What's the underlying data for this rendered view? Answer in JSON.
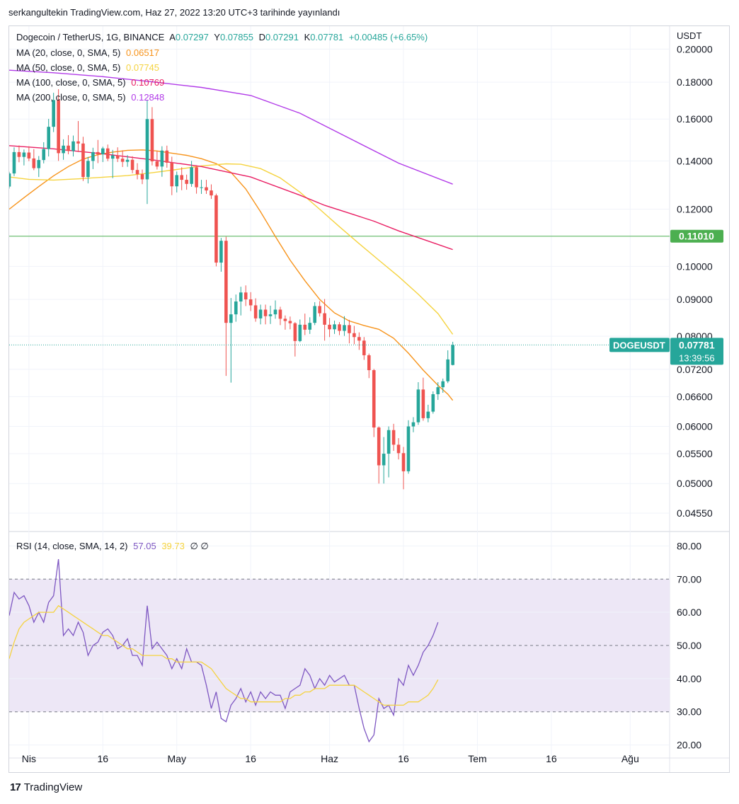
{
  "header": {
    "publish_text": "serkangultekin TradingView.com, Haz 27, 2022 13:20 UTC+3 tarihinde yayınlandı"
  },
  "legend": {
    "symbol": "Dogecoin / TetherUS, 1G, BINANCE",
    "o_label": "A",
    "o_value": "0.07297",
    "h_label": "Y",
    "h_value": "0.07855",
    "l_label": "D",
    "l_value": "0.07291",
    "c_label": "K",
    "c_value": "0.07781",
    "change": "+0.00485 (+6.65%)",
    "ma": [
      {
        "label": "MA (20, close, 0, SMA, 5)",
        "value": "0.06517",
        "color": "#f7931a"
      },
      {
        "label": "MA (50, close, 0, SMA, 5)",
        "value": "0.07745",
        "color": "#f5d33f"
      },
      {
        "label": "MA (100, close, 0, SMA, 5)",
        "value": "0.10769",
        "color": "#e91e63"
      },
      {
        "label": "MA (200, close, 0, SMA, 5)",
        "value": "0.12848",
        "color": "#b13ae8"
      }
    ],
    "rsi_label": "RSI (14, close, SMA, 14, 2)",
    "rsi_value": "57.05",
    "rsi_ma_value": "39.73",
    "rsi_extra": "∅  ∅"
  },
  "colors": {
    "up": "#26a69a",
    "down": "#ef5350",
    "rsi": "#7e57c2",
    "rsi_ma": "#f5d33f",
    "hline": "#4caf50",
    "band": "#ede7f6"
  },
  "footer": {
    "brand": "TradingView",
    "logo_mark": "17"
  },
  "chart_data": [
    {
      "type": "candlestick",
      "symbol_tag": "DOGEUSDT",
      "last_price": "0.07781",
      "countdown": "13:39:56",
      "hline_value": "0.11010",
      "y_axis_unit": "USDT",
      "scale": "log",
      "y_ticks": [
        "0.20000",
        "0.18000",
        "0.16000",
        "0.14000",
        "0.12000",
        "0.10000",
        "0.09000",
        "0.08000",
        "0.07200",
        "0.06600",
        "0.06000",
        "0.05500",
        "0.05000",
        "0.04550"
      ],
      "x_ticks": [
        "Nis",
        "16",
        "May",
        "16",
        "Haz",
        "16",
        "Tem",
        "16",
        "Ağu"
      ],
      "x_tick_days": [
        0,
        15,
        30,
        45,
        61,
        76,
        91,
        106,
        122
      ],
      "x_range_days": [
        -4,
        130
      ],
      "ylim": [
        0.0431,
        0.2085
      ],
      "ohlc_days_start": -4,
      "ohlc": [
        [
          0.129,
          0.1352,
          0.1282,
          0.1345
        ],
        [
          0.1345,
          0.1462,
          0.1334,
          0.144
        ],
        [
          0.144,
          0.1471,
          0.1394,
          0.1418
        ],
        [
          0.1418,
          0.1452,
          0.138,
          0.1438
        ],
        [
          0.1438,
          0.1467,
          0.1399,
          0.1411
        ],
        [
          0.1411,
          0.1454,
          0.1359,
          0.1368
        ],
        [
          0.1368,
          0.1422,
          0.133,
          0.1404
        ],
        [
          0.1404,
          0.1486,
          0.1389,
          0.1454
        ],
        [
          0.1454,
          0.1601,
          0.142,
          0.1561
        ],
        [
          0.1561,
          0.174,
          0.1535,
          0.17
        ],
        [
          0.17,
          0.176,
          0.14,
          0.1435
        ],
        [
          0.1435,
          0.15,
          0.1405,
          0.147
        ],
        [
          0.147,
          0.152,
          0.143,
          0.1445
        ],
        [
          0.1445,
          0.1518,
          0.142,
          0.149
        ],
        [
          0.149,
          0.159,
          0.144,
          0.148
        ],
        [
          0.148,
          0.1512,
          0.1313,
          0.133
        ],
        [
          0.133,
          0.1418,
          0.1303,
          0.14
        ],
        [
          0.14,
          0.146,
          0.1364,
          0.144
        ],
        [
          0.144,
          0.1497,
          0.139,
          0.143
        ],
        [
          0.143,
          0.1465,
          0.1395,
          0.1457
        ],
        [
          0.1457,
          0.1475,
          0.1399,
          0.141
        ],
        [
          0.141,
          0.145,
          0.1325,
          0.1425
        ],
        [
          0.1425,
          0.1462,
          0.1395,
          0.141
        ],
        [
          0.141,
          0.1448,
          0.1373,
          0.1396
        ],
        [
          0.1396,
          0.1426,
          0.1374,
          0.1405
        ],
        [
          0.1405,
          0.1421,
          0.1346,
          0.136
        ],
        [
          0.136,
          0.139,
          0.132,
          0.1342
        ],
        [
          0.1342,
          0.1362,
          0.13,
          0.132
        ],
        [
          0.132,
          0.17,
          0.122,
          0.16
        ],
        [
          0.16,
          0.1662,
          0.138,
          0.1398
        ],
        [
          0.1398,
          0.1444,
          0.1362,
          0.1375
        ],
        [
          0.1375,
          0.1467,
          0.1331,
          0.1447
        ],
        [
          0.1447,
          0.147,
          0.137,
          0.1392
        ],
        [
          0.1392,
          0.1419,
          0.1255,
          0.1291
        ],
        [
          0.1291,
          0.1353,
          0.1266,
          0.1338
        ],
        [
          0.1338,
          0.1372,
          0.1275,
          0.1318
        ],
        [
          0.1318,
          0.134,
          0.1277,
          0.1301
        ],
        [
          0.1301,
          0.14,
          0.1289,
          0.1372
        ],
        [
          0.1372,
          0.1381,
          0.1261,
          0.1287
        ],
        [
          0.1287,
          0.1318,
          0.126,
          0.1287
        ],
        [
          0.1287,
          0.1318,
          0.126,
          0.1274
        ],
        [
          0.1274,
          0.1299,
          0.124,
          0.1254
        ],
        [
          0.1254,
          0.1261,
          0.1,
          0.1012
        ],
        [
          0.1012,
          0.1095,
          0.0983,
          0.1085
        ],
        [
          0.1085,
          0.1099,
          0.0705,
          0.0835
        ],
        [
          0.0835,
          0.0904,
          0.069,
          0.0858
        ],
        [
          0.0858,
          0.0914,
          0.0838,
          0.0894
        ],
        [
          0.0894,
          0.0937,
          0.0855,
          0.092
        ],
        [
          0.092,
          0.0941,
          0.0881,
          0.09
        ],
        [
          0.09,
          0.0921,
          0.0867,
          0.0883
        ],
        [
          0.0883,
          0.0903,
          0.0838,
          0.0847
        ],
        [
          0.0847,
          0.0885,
          0.0831,
          0.0871
        ],
        [
          0.0871,
          0.0885,
          0.0831,
          0.0853
        ],
        [
          0.0853,
          0.0882,
          0.0832,
          0.0858
        ],
        [
          0.0858,
          0.0897,
          0.0846,
          0.0871
        ],
        [
          0.0871,
          0.0879,
          0.0829,
          0.0846
        ],
        [
          0.0846,
          0.0855,
          0.0817,
          0.084
        ],
        [
          0.084,
          0.0852,
          0.0818,
          0.0834
        ],
        [
          0.0834,
          0.0837,
          0.075,
          0.0788
        ],
        [
          0.0788,
          0.0844,
          0.0785,
          0.083
        ],
        [
          0.083,
          0.086,
          0.0803,
          0.0817
        ],
        [
          0.0817,
          0.085,
          0.0806,
          0.0835
        ],
        [
          0.0835,
          0.0892,
          0.0829,
          0.0881
        ],
        [
          0.0881,
          0.0895,
          0.0852,
          0.0861
        ],
        [
          0.0861,
          0.0901,
          0.0789,
          0.083
        ],
        [
          0.083,
          0.0848,
          0.0798,
          0.0818
        ],
        [
          0.0818,
          0.0841,
          0.0806,
          0.0831
        ],
        [
          0.0831,
          0.0837,
          0.0803,
          0.0814
        ],
        [
          0.0814,
          0.0853,
          0.0801,
          0.0829
        ],
        [
          0.0829,
          0.0843,
          0.0782,
          0.0808
        ],
        [
          0.0808,
          0.0827,
          0.078,
          0.0798
        ],
        [
          0.0798,
          0.081,
          0.0766,
          0.0789
        ],
        [
          0.0789,
          0.0798,
          0.0742,
          0.0753
        ],
        [
          0.0753,
          0.0757,
          0.07,
          0.0718
        ],
        [
          0.0718,
          0.0721,
          0.058,
          0.0598
        ],
        [
          0.0598,
          0.06,
          0.05,
          0.053
        ],
        [
          0.053,
          0.058,
          0.05,
          0.055
        ],
        [
          0.055,
          0.06,
          0.051,
          0.0593
        ],
        [
          0.0593,
          0.0605,
          0.0555,
          0.0566
        ],
        [
          0.0566,
          0.0578,
          0.054,
          0.0551
        ],
        [
          0.0551,
          0.0562,
          0.0491,
          0.052
        ],
        [
          0.052,
          0.0612,
          0.0516,
          0.06
        ],
        [
          0.06,
          0.0618,
          0.0589,
          0.0608
        ],
        [
          0.0608,
          0.0691,
          0.0603,
          0.0675
        ],
        [
          0.0675,
          0.0701,
          0.0611,
          0.0616
        ],
        [
          0.0616,
          0.0643,
          0.0608,
          0.0629
        ],
        [
          0.0629,
          0.0671,
          0.0625,
          0.0665
        ],
        [
          0.0665,
          0.0691,
          0.0653,
          0.068
        ],
        [
          0.068,
          0.0699,
          0.0668,
          0.0693
        ],
        [
          0.0693,
          0.0765,
          0.0689,
          0.0743
        ],
        [
          0.073,
          0.0786,
          0.0729,
          0.0778
        ]
      ],
      "ma_series": [
        {
          "name": "MA (20, close, 0, SMA, 5)",
          "color": "#f7931a",
          "points": [
            [
              -4,
              0.12
            ],
            [
              -1,
              0.1245
            ],
            [
              2,
              0.129
            ],
            [
              5,
              0.1335
            ],
            [
              8,
              0.1375
            ],
            [
              11,
              0.1408
            ],
            [
              14,
              0.1428
            ],
            [
              17,
              0.144
            ],
            [
              20,
              0.1448
            ],
            [
              23,
              0.145
            ],
            [
              26,
              0.1445
            ],
            [
              29,
              0.1435
            ],
            [
              32,
              0.1425
            ],
            [
              35,
              0.141
            ],
            [
              38,
              0.1388
            ],
            [
              41,
              0.135
            ],
            [
              44,
              0.128
            ],
            [
              47,
              0.119
            ],
            [
              50,
              0.11
            ],
            [
              53,
              0.102
            ],
            [
              56,
              0.0955
            ],
            [
              59,
              0.09
            ],
            [
              62,
              0.0862
            ],
            [
              65,
              0.084
            ],
            [
              68,
              0.0828
            ],
            [
              71,
              0.0818
            ],
            [
              74,
              0.0795
            ],
            [
              77,
              0.0758
            ],
            [
              80,
              0.0718
            ],
            [
              83,
              0.0684
            ],
            [
              85,
              0.0665
            ],
            [
              86,
              0.0652
            ]
          ]
        },
        {
          "name": "MA (50, close, 0, SMA, 5)",
          "color": "#f5d33f",
          "points": [
            [
              -4,
              0.133
            ],
            [
              0,
              0.132
            ],
            [
              5,
              0.1317
            ],
            [
              10,
              0.1322
            ],
            [
              15,
              0.1329
            ],
            [
              20,
              0.1336
            ],
            [
              25,
              0.1348
            ],
            [
              30,
              0.1362
            ],
            [
              35,
              0.1378
            ],
            [
              40,
              0.1387
            ],
            [
              43,
              0.1385
            ],
            [
              47,
              0.1366
            ],
            [
              51,
              0.1326
            ],
            [
              55,
              0.1267
            ],
            [
              59,
              0.12
            ],
            [
              63,
              0.1135
            ],
            [
              67,
              0.1075
            ],
            [
              71,
              0.102
            ],
            [
              75,
              0.0968
            ],
            [
              79,
              0.0915
            ],
            [
              83,
              0.086
            ],
            [
              86,
              0.0805
            ]
          ]
        },
        {
          "name": "MA (100, close, 0, SMA, 5)",
          "color": "#e91e63",
          "points": [
            [
              -4,
              0.147
            ],
            [
              5,
              0.1455
            ],
            [
              15,
              0.1432
            ],
            [
              25,
              0.1405
            ],
            [
              35,
              0.1375
            ],
            [
              45,
              0.133
            ],
            [
              55,
              0.1255
            ],
            [
              60,
              0.1215
            ],
            [
              65,
              0.1185
            ],
            [
              70,
              0.1155
            ],
            [
              75,
              0.112
            ],
            [
              80,
              0.109
            ],
            [
              86,
              0.1055
            ]
          ]
        },
        {
          "name": "MA (200, close, 0, SMA, 5)",
          "color": "#b13ae8",
          "points": [
            [
              -4,
              0.187
            ],
            [
              5,
              0.1855
            ],
            [
              15,
              0.1832
            ],
            [
              25,
              0.1802
            ],
            [
              35,
              0.177
            ],
            [
              45,
              0.1725
            ],
            [
              55,
              0.163
            ],
            [
              65,
              0.1505
            ],
            [
              75,
              0.139
            ],
            [
              86,
              0.13
            ]
          ]
        }
      ]
    },
    {
      "type": "line",
      "name": "RSI (14, close, SMA, 14, 2)",
      "y_ticks": [
        "80.00",
        "70.00",
        "60.00",
        "50.00",
        "40.00",
        "30.00",
        "20.00"
      ],
      "ylim": [
        16.5,
        83.5
      ],
      "band": [
        30,
        70
      ],
      "x_range_days": [
        -4,
        130
      ],
      "x_start": -4,
      "series": [
        {
          "values": [
            59,
            66,
            64,
            65,
            62,
            57,
            60,
            57,
            63,
            65,
            76,
            53,
            55,
            53,
            57,
            54,
            47,
            50,
            51,
            54,
            55,
            53,
            49,
            50,
            52,
            47,
            47,
            44,
            62,
            49,
            51,
            49,
            47,
            43,
            46,
            43,
            49,
            45,
            45,
            44,
            38,
            31,
            36,
            28,
            27,
            32,
            34,
            37,
            33,
            36,
            32,
            36,
            34,
            36,
            35,
            35,
            31,
            36,
            37,
            38,
            43,
            41,
            37,
            40,
            38,
            41,
            39,
            40,
            41,
            38,
            38,
            31,
            25,
            21,
            23,
            34,
            31,
            32,
            29,
            40,
            38,
            44,
            41,
            44,
            48,
            50,
            53,
            57
          ]
        },
        {
          "values": [
            46,
            51,
            55,
            57,
            58,
            59,
            60,
            60,
            60,
            60,
            62,
            61,
            60,
            59,
            58,
            57,
            56,
            55,
            54,
            53,
            53,
            52,
            51,
            50,
            49,
            49,
            48,
            47,
            47,
            47,
            47,
            47,
            46,
            46,
            45,
            45,
            45,
            45,
            45,
            45,
            44,
            43,
            41,
            39,
            37,
            36,
            35,
            34,
            34,
            33,
            33,
            33,
            33,
            33,
            33,
            33,
            34,
            34,
            35,
            35,
            36,
            36,
            37,
            37,
            37,
            38,
            38,
            38,
            38,
            38,
            38,
            37,
            36,
            35,
            34,
            33,
            32,
            32,
            32,
            32,
            32,
            33,
            33,
            33,
            34,
            35,
            37,
            39.7
          ]
        }
      ]
    }
  ]
}
